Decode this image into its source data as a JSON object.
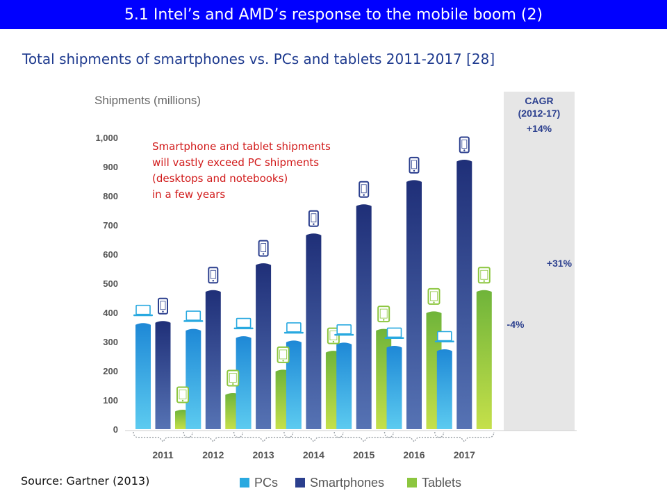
{
  "slide": {
    "title": "5.1 Intel’s and AMD’s response to the mobile boom (2)",
    "subtitle": "Total shipments of smartphones vs. PCs and tablets 2011-2017 [28]",
    "source": "Source: Gartner (2013)"
  },
  "chart_data": {
    "type": "bar",
    "ylabel": "Shipments (millions)",
    "categories": [
      "2011",
      "2012",
      "2013",
      "2014",
      "2015",
      "2016",
      "2017"
    ],
    "ylim": [
      0,
      1000
    ],
    "yticks": [
      "0",
      "100",
      "200",
      "300",
      "400",
      "500",
      "600",
      "700",
      "800",
      "900",
      "1,000"
    ],
    "series": [
      {
        "name": "PCs",
        "color": "#29a9e0",
        "values": [
          365,
          345,
          320,
          305,
          298,
          287,
          275
        ]
      },
      {
        "name": "Smartphones",
        "color": "#2b3f8e",
        "values": [
          372,
          478,
          570,
          672,
          772,
          855,
          925
        ]
      },
      {
        "name": "Tablets",
        "color": "#8cc63f",
        "values": [
          68,
          125,
          205,
          270,
          345,
          405,
          478
        ]
      }
    ],
    "grid": false,
    "legend": "bottom",
    "cagr": {
      "heading_line1": "CAGR",
      "heading_line2": "(2012-17)",
      "smartphones": "+14%",
      "tablets": "+31%",
      "pcs": "-4%"
    },
    "annotation": [
      "Smartphone and tablet shipments",
      "will vastly exceed PC shipments",
      "(desktops and notebooks)",
      "in a few years"
    ]
  }
}
